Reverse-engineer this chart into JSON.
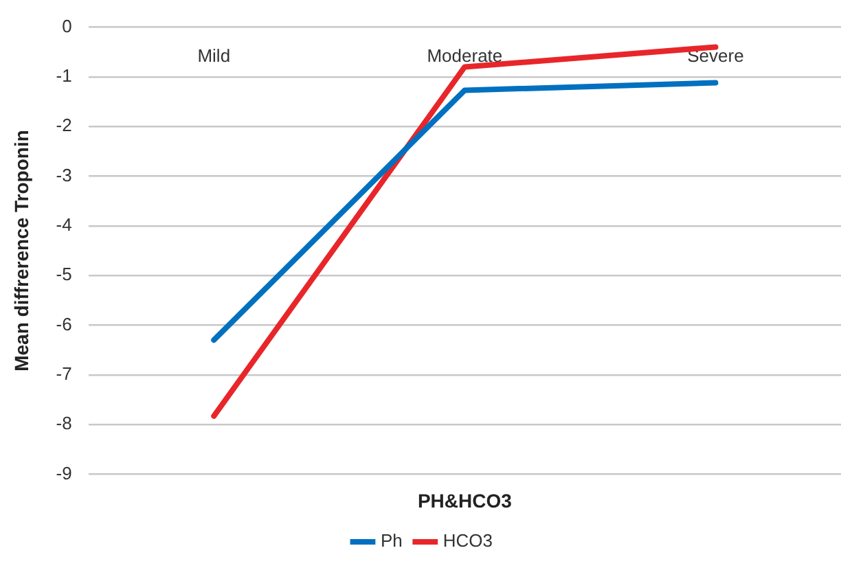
{
  "chart_data": {
    "type": "line",
    "categories": [
      "Mild",
      "Moderate",
      "Severe"
    ],
    "series": [
      {
        "name": "Ph",
        "color": "#0070c0",
        "values": [
          -6.3,
          -1.27,
          -1.12
        ]
      },
      {
        "name": "HCO3",
        "color": "#e8262a",
        "values": [
          -7.83,
          -0.8,
          -0.4
        ]
      }
    ],
    "ylim": [
      -9,
      0
    ],
    "yticks": [
      0,
      -1,
      -2,
      -3,
      -4,
      -5,
      -6,
      -7,
      -8,
      -9
    ],
    "ylabel": "Mean diffrerence Troponin",
    "xlabel": "PH&HCO3",
    "grid": "y",
    "legend": "bottom",
    "marker": "none",
    "line_style": "solid"
  }
}
